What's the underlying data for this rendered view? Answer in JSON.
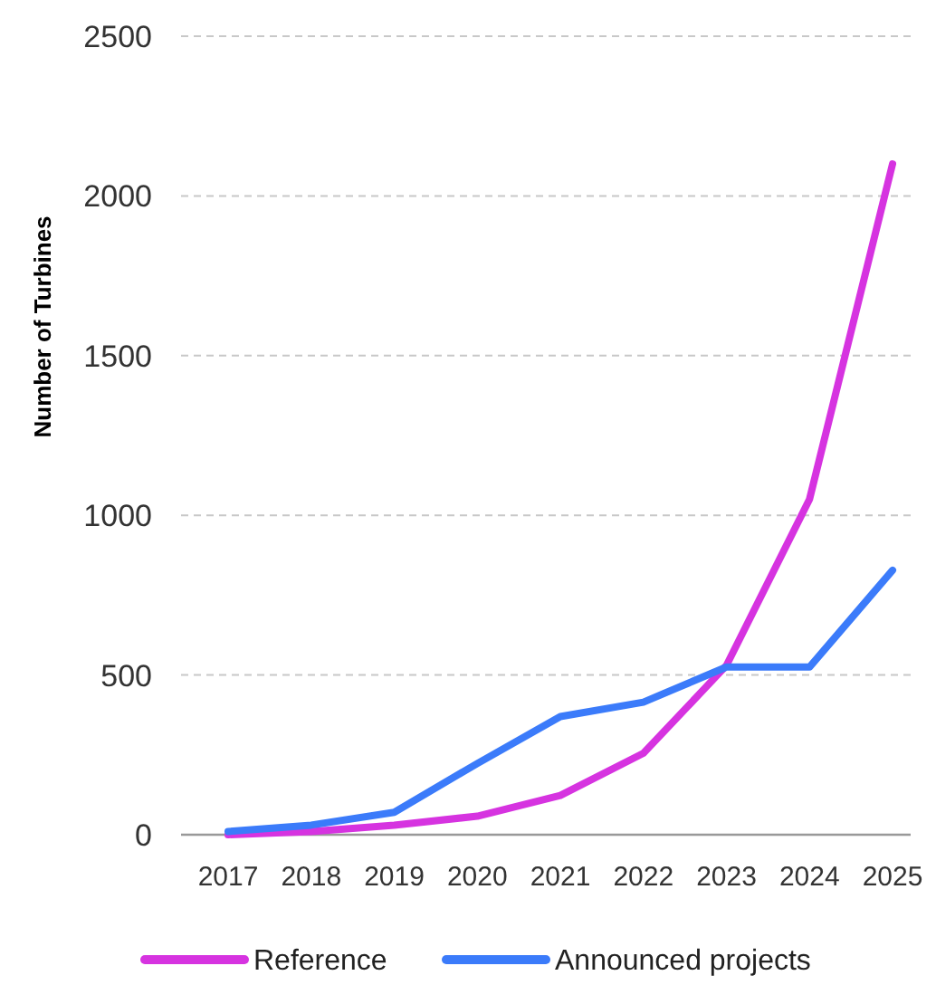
{
  "chart_data": {
    "type": "line",
    "ylabel": "Number of Turbines",
    "categories": [
      "2017",
      "2018",
      "2019",
      "2020",
      "2021",
      "2022",
      "2023",
      "2024",
      "2025"
    ],
    "series": [
      {
        "name": "Reference",
        "color": "#d633e0",
        "values": [
          0,
          10,
          30,
          58,
          123,
          255,
          530,
          1050,
          2100
        ]
      },
      {
        "name": "Announced projects",
        "color": "#3b7bfa",
        "values": [
          10,
          30,
          70,
          223,
          370,
          415,
          525,
          525,
          828
        ]
      }
    ],
    "ylim": [
      0,
      2500
    ],
    "yticks": [
      0,
      500,
      1000,
      1500,
      2000,
      2500
    ],
    "grid": "y",
    "legend": "bottom",
    "marker": "none",
    "line_style": "solid"
  }
}
